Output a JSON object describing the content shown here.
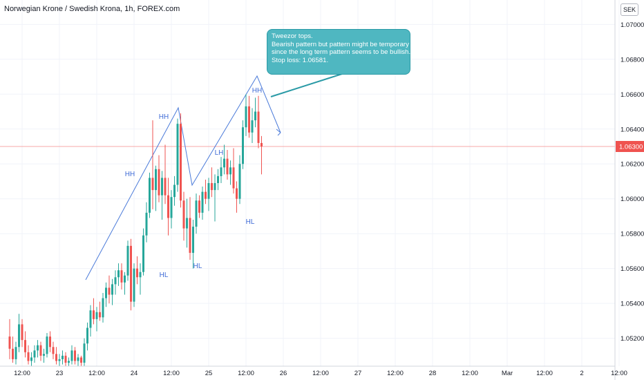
{
  "header": {
    "title": "Norwegian Krone / Swedish Krona, 1h, FOREX.com"
  },
  "currency_badge": "SEK",
  "annotation": {
    "lines": [
      "Tweezor tops.",
      "Bearish pattern but pattern might be temporary",
      "since the long term pattern seems to be bullish.",
      "Stop loss: 1.06581."
    ]
  },
  "wave_labels": [
    "HH",
    "HL",
    "HH",
    "HL",
    "LH",
    "HH",
    "HL"
  ],
  "colors": {
    "up": "#26a69a",
    "down": "#ef5350",
    "trendline": "#4a7ad9",
    "price_line": "#f7a8a8",
    "label": "#3f6bd6"
  },
  "chart_data": {
    "type": "candlestick",
    "title": "Norwegian Krone / Swedish Krona, 1h, FOREX.com",
    "y_axis": {
      "ticks": [
        "1.05200",
        "1.05400",
        "1.05600",
        "1.05800",
        "1.06000",
        "1.06200",
        "1.06400",
        "1.06600",
        "1.06800",
        "1.07000"
      ],
      "ylim": [
        1.0504,
        1.0714
      ]
    },
    "x_axis": {
      "ticks": [
        "12:00",
        "23",
        "12:00",
        "24",
        "12:00",
        "25",
        "12:00",
        "26",
        "12:00",
        "27",
        "12:00",
        "28",
        "12:00",
        "Mar",
        "12:00",
        "2",
        "12:00"
      ]
    },
    "last_price": {
      "label": "1.06300",
      "value": 1.063
    },
    "grid": true,
    "candles_ohlc": [
      [
        1.0521,
        1.0531,
        1.0508,
        1.0514
      ],
      [
        1.0514,
        1.0521,
        1.0506,
        1.0508
      ],
      [
        1.0508,
        1.0518,
        1.0505,
        1.0515
      ],
      [
        1.0515,
        1.0534,
        1.0512,
        1.0528
      ],
      [
        1.0528,
        1.0531,
        1.0515,
        1.0519
      ],
      [
        1.0519,
        1.0524,
        1.0509,
        1.0512
      ],
      [
        1.0512,
        1.0516,
        1.0505,
        1.0507
      ],
      [
        1.0507,
        1.0512,
        1.0504,
        1.0509
      ],
      [
        1.0509,
        1.0516,
        1.0506,
        1.0513
      ],
      [
        1.0513,
        1.0519,
        1.0509,
        1.0516
      ],
      [
        1.0516,
        1.0518,
        1.0507,
        1.051
      ],
      [
        1.051,
        1.0514,
        1.0506,
        1.0511
      ],
      [
        1.0511,
        1.0523,
        1.0509,
        1.0521
      ],
      [
        1.0521,
        1.0524,
        1.0512,
        1.0515
      ],
      [
        1.0515,
        1.0518,
        1.0508,
        1.0511
      ],
      [
        1.0511,
        1.0515,
        1.0505,
        1.0507
      ],
      [
        1.0507,
        1.0511,
        1.0504,
        1.0508
      ],
      [
        1.0508,
        1.0513,
        1.0505,
        1.051
      ],
      [
        1.051,
        1.0512,
        1.0504,
        1.0506
      ],
      [
        1.0506,
        1.0509,
        1.0504,
        1.0507
      ],
      [
        1.0507,
        1.0516,
        1.0505,
        1.0513
      ],
      [
        1.0513,
        1.0515,
        1.0505,
        1.0507
      ],
      [
        1.0507,
        1.0511,
        1.0504,
        1.0509
      ],
      [
        1.0509,
        1.051,
        1.0504,
        1.0506
      ],
      [
        1.0506,
        1.052,
        1.0504,
        1.0517
      ],
      [
        1.0517,
        1.0529,
        1.0513,
        1.0526
      ],
      [
        1.0526,
        1.0539,
        1.0521,
        1.0536
      ],
      [
        1.0536,
        1.0543,
        1.0528,
        1.0531
      ],
      [
        1.0531,
        1.0538,
        1.0524,
        1.0535
      ],
      [
        1.0535,
        1.0541,
        1.053,
        1.0532
      ],
      [
        1.0532,
        1.0546,
        1.0529,
        1.0543
      ],
      [
        1.0543,
        1.0552,
        1.0538,
        1.0549
      ],
      [
        1.0549,
        1.0556,
        1.054,
        1.0545
      ],
      [
        1.0545,
        1.0554,
        1.0539,
        1.0551
      ],
      [
        1.0551,
        1.0559,
        1.0545,
        1.0555
      ],
      [
        1.0555,
        1.0563,
        1.055,
        1.0559
      ],
      [
        1.0559,
        1.0563,
        1.0548,
        1.0552
      ],
      [
        1.0552,
        1.0558,
        1.0545,
        1.0556
      ],
      [
        1.0556,
        1.0576,
        1.0553,
        1.0573
      ],
      [
        1.0573,
        1.0577,
        1.0536,
        1.0541
      ],
      [
        1.0541,
        1.0563,
        1.0538,
        1.056
      ],
      [
        1.056,
        1.0567,
        1.0551,
        1.0555
      ],
      [
        1.0555,
        1.0563,
        1.0545,
        1.0558
      ],
      [
        1.0558,
        1.0583,
        1.0556,
        1.0579
      ],
      [
        1.0579,
        1.0598,
        1.0575,
        1.0592
      ],
      [
        1.0592,
        1.0615,
        1.0589,
        1.0612
      ],
      [
        1.0612,
        1.0645,
        1.0594,
        1.0605
      ],
      [
        1.0605,
        1.0619,
        1.0593,
        1.0617
      ],
      [
        1.0617,
        1.0625,
        1.0598,
        1.0602
      ],
      [
        1.0602,
        1.0616,
        1.0588,
        1.0612
      ],
      [
        1.0612,
        1.0631,
        1.0597,
        1.0602
      ],
      [
        1.0602,
        1.0612,
        1.0579,
        1.0589
      ],
      [
        1.0589,
        1.0605,
        1.0583,
        1.0601
      ],
      [
        1.0601,
        1.0613,
        1.0596,
        1.0608
      ],
      [
        1.0608,
        1.0646,
        1.0604,
        1.0643
      ],
      [
        1.0643,
        1.0649,
        1.0595,
        1.0599
      ],
      [
        1.0599,
        1.0604,
        1.0576,
        1.0583
      ],
      [
        1.0583,
        1.06,
        1.0572,
        1.0589
      ],
      [
        1.0589,
        1.0601,
        1.0565,
        1.0569
      ],
      [
        1.0569,
        1.0588,
        1.056,
        1.0584
      ],
      [
        1.0584,
        1.0603,
        1.058,
        1.0599
      ],
      [
        1.0599,
        1.0602,
        1.0589,
        1.0592
      ],
      [
        1.0592,
        1.0607,
        1.0588,
        1.0604
      ],
      [
        1.0604,
        1.0611,
        1.0597,
        1.06
      ],
      [
        1.06,
        1.0612,
        1.0593,
        1.0609
      ],
      [
        1.0609,
        1.0618,
        1.0601,
        1.0605
      ],
      [
        1.0605,
        1.0614,
        1.0587,
        1.0609
      ],
      [
        1.0609,
        1.0617,
        1.0605,
        1.0613
      ],
      [
        1.0613,
        1.0624,
        1.0609,
        1.0618
      ],
      [
        1.0618,
        1.0631,
        1.0614,
        1.0623
      ],
      [
        1.0623,
        1.0628,
        1.0611,
        1.0614
      ],
      [
        1.0614,
        1.0622,
        1.0608,
        1.0618
      ],
      [
        1.0618,
        1.0629,
        1.0603,
        1.0606
      ],
      [
        1.0606,
        1.061,
        1.0592,
        1.06
      ],
      [
        1.06,
        1.0625,
        1.0597,
        1.062
      ],
      [
        1.062,
        1.0645,
        1.0617,
        1.0641
      ],
      [
        1.0641,
        1.066,
        1.0636,
        1.0653
      ],
      [
        1.0653,
        1.0659,
        1.0635,
        1.0638
      ],
      [
        1.0638,
        1.0652,
        1.0632,
        1.0645
      ],
      [
        1.0645,
        1.0658,
        1.0641,
        1.065
      ],
      [
        1.065,
        1.0659,
        1.0629,
        1.0632
      ],
      [
        1.0632,
        1.0636,
        1.0614,
        1.063
      ]
    ]
  }
}
